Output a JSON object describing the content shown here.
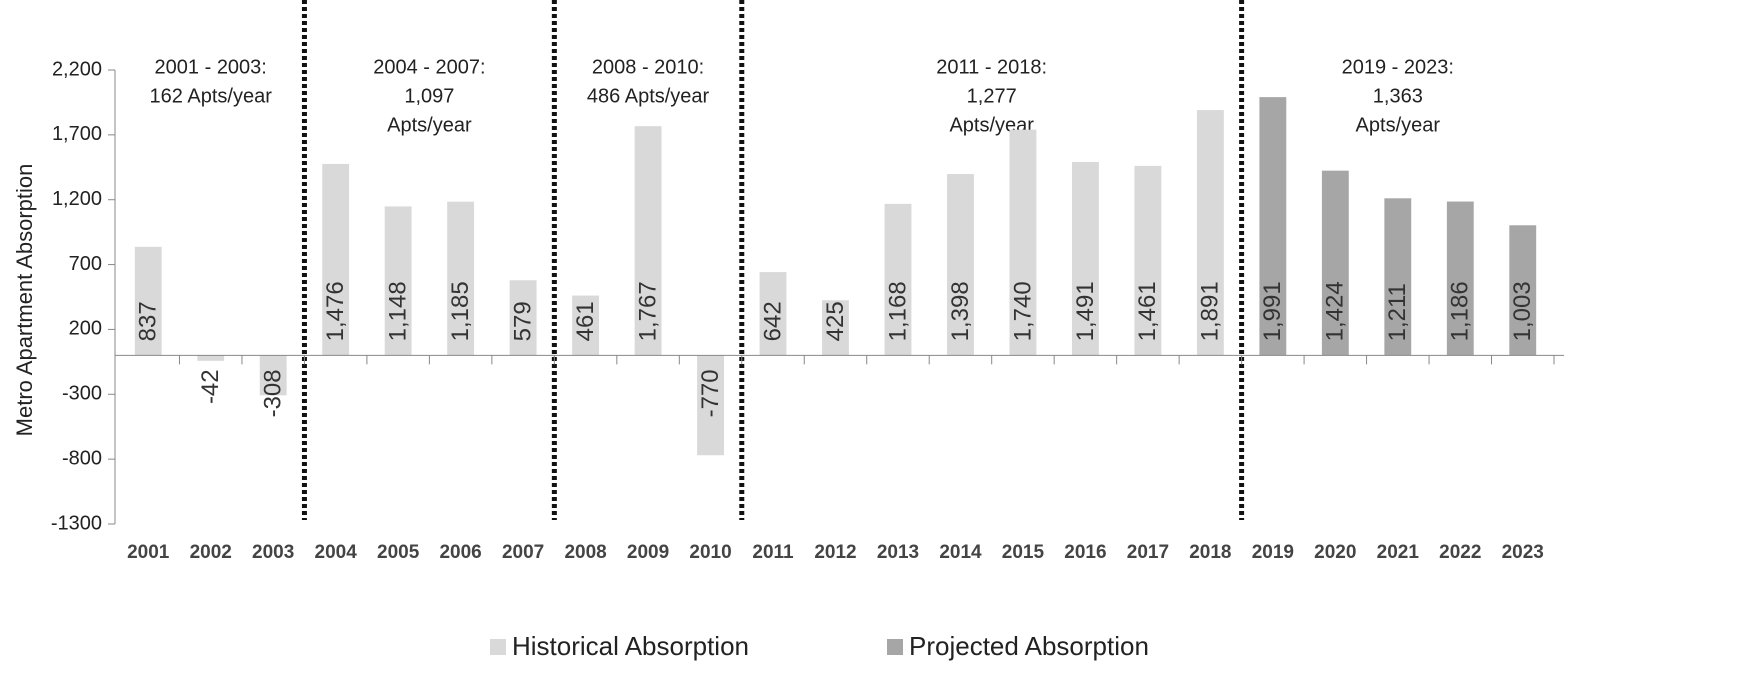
{
  "chart_data": {
    "type": "bar",
    "y_axis_label": "Metro Apartment Absorption",
    "categories": [
      "2001",
      "2002",
      "2003",
      "2004",
      "2005",
      "2006",
      "2007",
      "2008",
      "2009",
      "2010",
      "2011",
      "2012",
      "2013",
      "2014",
      "2015",
      "2016",
      "2017",
      "2018",
      "2019",
      "2020",
      "2021",
      "2022",
      "2023"
    ],
    "series": [
      {
        "name": "Historical Absorption",
        "color": "#d9d9d9",
        "values": [
          837,
          -42,
          -308,
          1476,
          1148,
          1185,
          579,
          461,
          1767,
          -770,
          642,
          425,
          1168,
          1398,
          1740,
          1491,
          1461,
          1891,
          null,
          null,
          null,
          null,
          null
        ],
        "value_labels": [
          "837",
          "-42",
          "-308",
          "1,476",
          "1,148",
          "1,185",
          "579",
          "461",
          "1,767",
          "-770",
          "642",
          "425",
          "1,168",
          "1,398",
          "1,740",
          "1,491",
          "1,461",
          "1,891",
          null,
          null,
          null,
          null,
          null
        ]
      },
      {
        "name": "Projected Absorption",
        "color": "#a6a6a6",
        "values": [
          null,
          null,
          null,
          null,
          null,
          null,
          null,
          null,
          null,
          null,
          null,
          null,
          null,
          null,
          null,
          null,
          null,
          null,
          1991,
          1424,
          1211,
          1186,
          1003
        ],
        "value_labels": [
          null,
          null,
          null,
          null,
          null,
          null,
          null,
          null,
          null,
          null,
          null,
          null,
          null,
          null,
          null,
          null,
          null,
          null,
          "1,991",
          "1,424",
          "1,211",
          "1,186",
          "1,003"
        ]
      }
    ],
    "ylim": [
      -1300,
      2200
    ],
    "yticks": [
      -1300,
      -800,
      -300,
      200,
      700,
      {
        "value": 1200,
        "label": "1,200"
      },
      {
        "value": 1700,
        "label": "1,700"
      },
      {
        "value": 2200,
        "label": "2,200"
      }
    ],
    "periods": [
      {
        "lines": [
          "2001 - 2003:",
          "162 Apts/year"
        ]
      },
      {
        "lines": [
          "2004 - 2007:",
          "1,097",
          "Apts/year"
        ]
      },
      {
        "lines": [
          "2008 - 2010:",
          "486 Apts/year"
        ]
      },
      {
        "lines": [
          "2011 - 2018:",
          "1,277",
          "Apts/year"
        ]
      },
      {
        "lines": [
          "2019 - 2023:",
          "1,363",
          "Apts/year"
        ]
      }
    ],
    "legend": "bottom"
  }
}
